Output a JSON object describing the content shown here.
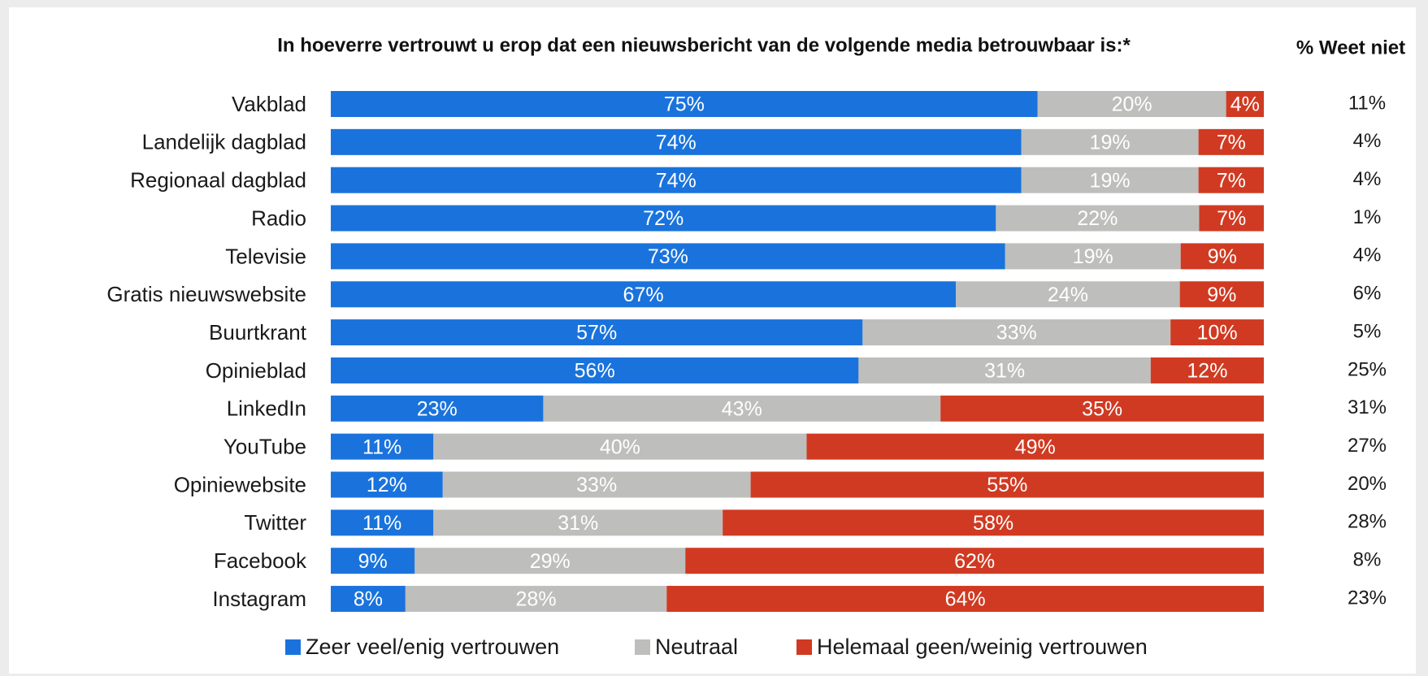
{
  "chart_data": {
    "type": "bar",
    "orientation": "horizontal",
    "stacking": "percent",
    "title": "In hoeverre vertrouwt u erop dat een nieuwsbericht van de volgende media betrouwbaar is:*",
    "categories": [
      "Vakblad",
      "Landelijk dagblad",
      "Regionaal dagblad",
      "Radio",
      "Televisie",
      "Gratis nieuwswebsite",
      "Buurtkrant",
      "Opinieblad",
      "LinkedIn",
      "YouTube",
      "Opiniewebsite",
      "Twitter",
      "Facebook",
      "Instagram"
    ],
    "series": [
      {
        "name": "Zeer veel/enig vertrouwen",
        "color": "#1a73dc",
        "values": [
          75,
          74,
          74,
          72,
          73,
          67,
          57,
          56,
          23,
          11,
          12,
          11,
          9,
          8
        ],
        "value_labels": [
          "75%",
          "74%",
          "74%",
          "72%",
          "73%",
          "67%",
          "57%",
          "56%",
          "23%",
          "11%",
          "12%",
          "11%",
          "9%",
          "8%"
        ]
      },
      {
        "name": "Neutraal",
        "color": "#bebebc",
        "values": [
          20,
          19,
          19,
          22,
          19,
          24,
          33,
          31,
          43,
          40,
          33,
          31,
          29,
          28
        ],
        "value_labels": [
          "20%",
          "19%",
          "19%",
          "22%",
          "19%",
          "24%",
          "33%",
          "31%",
          "43%",
          "40%",
          "33%",
          "31%",
          "29%",
          "28%"
        ]
      },
      {
        "name": "Helemaal geen/weinig vertrouwen",
        "color": "#d03a22",
        "values": [
          4,
          7,
          7,
          7,
          9,
          9,
          10,
          12,
          35,
          49,
          55,
          58,
          62,
          64
        ],
        "value_labels": [
          "4%",
          "7%",
          "7%",
          "7%",
          "9%",
          "9%",
          "10%",
          "12%",
          "35%",
          "49%",
          "55%",
          "58%",
          "62%",
          "64%"
        ]
      }
    ],
    "dont_know": {
      "title": "% Weet niet",
      "values": [
        11,
        4,
        4,
        1,
        4,
        6,
        5,
        25,
        31,
        27,
        20,
        28,
        8,
        23
      ],
      "value_labels": [
        "11%",
        "4%",
        "4%",
        "1%",
        "4%",
        "6%",
        "5%",
        "25%",
        "31%",
        "27%",
        "20%",
        "28%",
        "8%",
        "23%"
      ]
    },
    "legend": "bottom"
  }
}
